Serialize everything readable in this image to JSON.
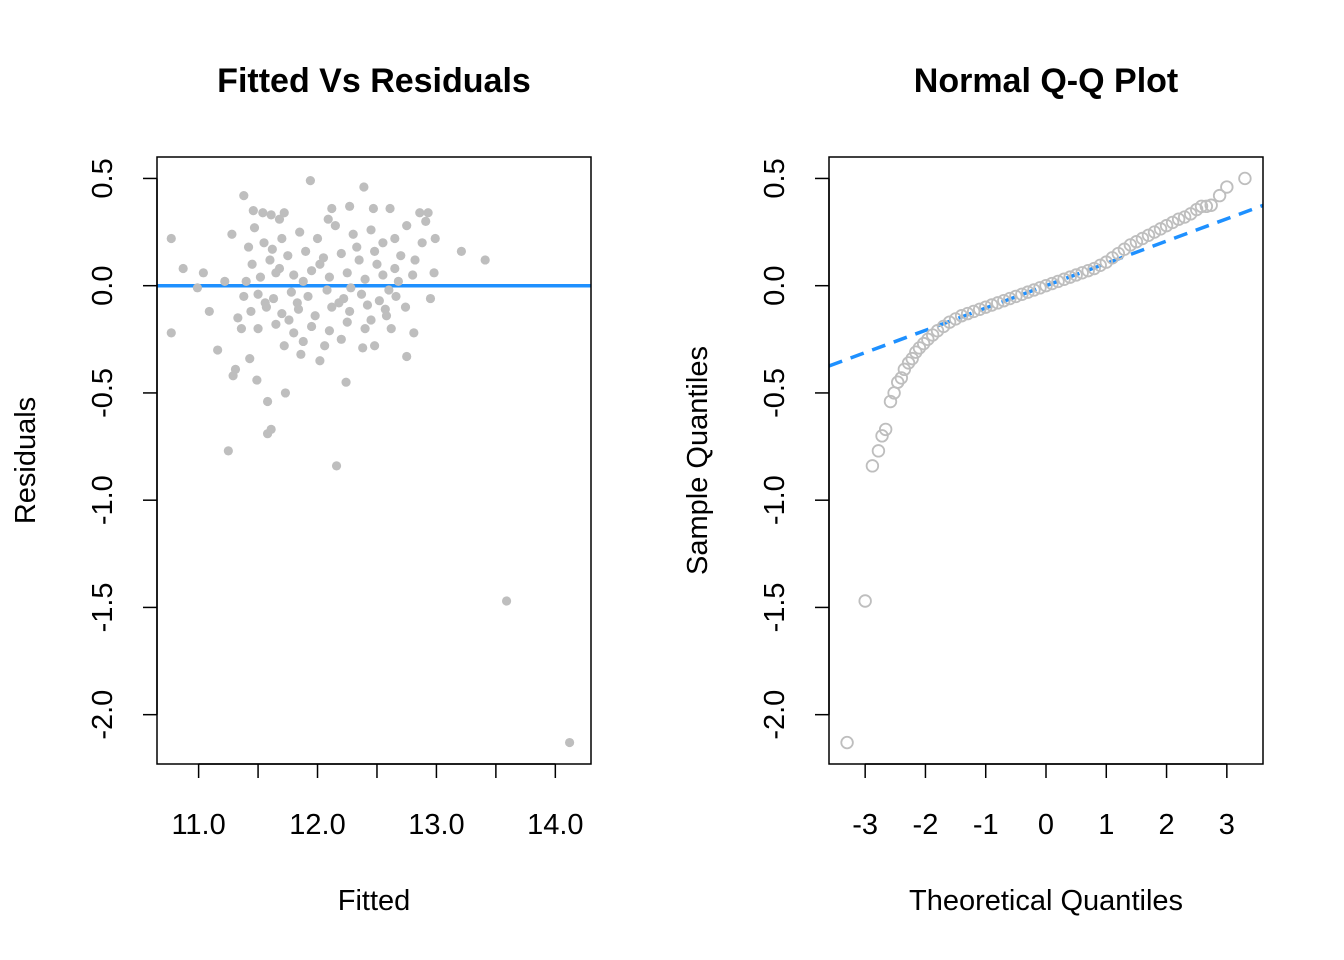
{
  "chart_data": [
    {
      "type": "scatter",
      "title": "Fitted Vs Residuals",
      "xlabel": "Fitted",
      "ylabel": "Residuals",
      "xlim": [
        10.65,
        14.3
      ],
      "ylim": [
        -2.23,
        0.6
      ],
      "x_ticks": [
        {
          "value": 11.0,
          "label": "11.0"
        },
        {
          "value": 11.5,
          "label": ""
        },
        {
          "value": 12.0,
          "label": "12.0"
        },
        {
          "value": 12.5,
          "label": ""
        },
        {
          "value": 13.0,
          "label": "13.0"
        },
        {
          "value": 13.5,
          "label": ""
        },
        {
          "value": 14.0,
          "label": "14.0"
        }
      ],
      "y_ticks": [
        {
          "value": 0.5,
          "label": "0.5"
        },
        {
          "value": 0.0,
          "label": "0.0"
        },
        {
          "value": -0.5,
          "label": "-0.5"
        },
        {
          "value": -1.0,
          "label": "-1.0"
        },
        {
          "value": -1.5,
          "label": "-1.5"
        },
        {
          "value": -2.0,
          "label": "-2.0"
        }
      ],
      "reference_line": {
        "y": 0,
        "color": "#1E90FF"
      },
      "point_color": "#BEBEBE",
      "point_style": "filled",
      "grid": false,
      "points": [
        [
          10.77,
          0.22
        ],
        [
          10.87,
          0.08
        ],
        [
          10.99,
          -0.01
        ],
        [
          11.04,
          0.06
        ],
        [
          11.09,
          -0.12
        ],
        [
          10.77,
          -0.22
        ],
        [
          11.16,
          -0.3
        ],
        [
          11.25,
          -0.77
        ],
        [
          11.31,
          -0.39
        ],
        [
          11.29,
          -0.42
        ],
        [
          11.22,
          0.02
        ],
        [
          11.28,
          0.24
        ],
        [
          11.38,
          0.42
        ],
        [
          11.46,
          0.35
        ],
        [
          11.54,
          0.34
        ],
        [
          11.61,
          0.33
        ],
        [
          11.68,
          0.31
        ],
        [
          11.72,
          0.34
        ],
        [
          11.94,
          0.49
        ],
        [
          12.12,
          0.36
        ],
        [
          12.27,
          0.37
        ],
        [
          12.39,
          0.46
        ],
        [
          12.47,
          0.36
        ],
        [
          12.61,
          0.36
        ],
        [
          12.75,
          0.28
        ],
        [
          12.86,
          0.34
        ],
        [
          12.93,
          0.34
        ],
        [
          12.91,
          0.3
        ],
        [
          12.99,
          0.22
        ],
        [
          12.88,
          0.2
        ],
        [
          13.21,
          0.16
        ],
        [
          13.41,
          0.12
        ],
        [
          12.82,
          0.12
        ],
        [
          12.98,
          0.06
        ],
        [
          12.8,
          0.05
        ],
        [
          12.95,
          -0.06
        ],
        [
          12.74,
          -0.1
        ],
        [
          12.58,
          -0.14
        ],
        [
          12.62,
          -0.2
        ],
        [
          12.81,
          -0.22
        ],
        [
          12.75,
          -0.33
        ],
        [
          12.48,
          -0.28
        ],
        [
          12.38,
          -0.29
        ],
        [
          12.24,
          -0.45
        ],
        [
          12.16,
          -0.84
        ],
        [
          12.02,
          -0.35
        ],
        [
          11.86,
          -0.32
        ],
        [
          11.73,
          -0.5
        ],
        [
          11.58,
          -0.54
        ],
        [
          11.61,
          -0.67
        ],
        [
          11.58,
          -0.69
        ],
        [
          11.49,
          -0.44
        ],
        [
          11.43,
          -0.34
        ],
        [
          11.36,
          -0.2
        ],
        [
          11.33,
          -0.15
        ],
        [
          13.59,
          -1.47
        ],
        [
          14.12,
          -2.13
        ],
        [
          11.42,
          0.18
        ],
        [
          11.55,
          0.2
        ],
        [
          11.7,
          0.22
        ],
        [
          11.85,
          0.25
        ],
        [
          12.0,
          0.22
        ],
        [
          12.15,
          0.28
        ],
        [
          12.3,
          0.24
        ],
        [
          12.45,
          0.26
        ],
        [
          12.55,
          0.2
        ],
        [
          12.65,
          0.22
        ],
        [
          11.45,
          0.1
        ],
        [
          11.6,
          0.12
        ],
        [
          11.75,
          0.14
        ],
        [
          11.9,
          0.16
        ],
        [
          12.05,
          0.13
        ],
        [
          12.2,
          0.15
        ],
        [
          12.35,
          0.12
        ],
        [
          12.5,
          0.1
        ],
        [
          12.65,
          0.08
        ],
        [
          12.7,
          0.14
        ],
        [
          11.4,
          0.02
        ],
        [
          11.52,
          0.04
        ],
        [
          11.65,
          0.06
        ],
        [
          11.8,
          0.05
        ],
        [
          11.95,
          0.07
        ],
        [
          12.1,
          0.04
        ],
        [
          12.25,
          0.06
        ],
        [
          12.4,
          0.03
        ],
        [
          12.55,
          0.05
        ],
        [
          12.68,
          0.02
        ],
        [
          11.38,
          -0.05
        ],
        [
          11.5,
          -0.04
        ],
        [
          11.63,
          -0.06
        ],
        [
          11.78,
          -0.03
        ],
        [
          11.92,
          -0.05
        ],
        [
          12.08,
          -0.02
        ],
        [
          12.22,
          -0.06
        ],
        [
          12.37,
          -0.04
        ],
        [
          12.52,
          -0.07
        ],
        [
          12.66,
          -0.05
        ],
        [
          11.44,
          -0.12
        ],
        [
          11.57,
          -0.1
        ],
        [
          11.7,
          -0.13
        ],
        [
          11.84,
          -0.11
        ],
        [
          11.98,
          -0.14
        ],
        [
          12.12,
          -0.1
        ],
        [
          12.27,
          -0.12
        ],
        [
          12.42,
          -0.09
        ],
        [
          12.57,
          -0.11
        ],
        [
          11.5,
          -0.2
        ],
        [
          11.65,
          -0.18
        ],
        [
          11.8,
          -0.22
        ],
        [
          11.95,
          -0.19
        ],
        [
          12.1,
          -0.21
        ],
        [
          12.25,
          -0.17
        ],
        [
          12.4,
          -0.2
        ],
        [
          11.72,
          -0.28
        ],
        [
          11.88,
          -0.26
        ],
        [
          12.06,
          -0.28
        ],
        [
          12.2,
          -0.25
        ],
        [
          11.68,
          0.08
        ],
        [
          11.83,
          -0.08
        ],
        [
          12.02,
          0.1
        ],
        [
          12.18,
          -0.08
        ],
        [
          12.33,
          0.18
        ],
        [
          11.56,
          -0.08
        ],
        [
          12.48,
          0.16
        ],
        [
          12.6,
          -0.02
        ],
        [
          11.47,
          0.27
        ],
        [
          12.09,
          0.31
        ],
        [
          11.88,
          0.02
        ],
        [
          12.28,
          -0.01
        ],
        [
          11.76,
          -0.16
        ],
        [
          12.45,
          -0.16
        ],
        [
          11.62,
          0.17
        ]
      ]
    },
    {
      "type": "scatter",
      "title": "Normal Q-Q Plot",
      "xlabel": "Theoretical Quantiles",
      "ylabel": "Sample Quantiles",
      "xlim": [
        -3.6,
        3.6
      ],
      "ylim": [
        -2.23,
        0.6
      ],
      "x_ticks": [
        {
          "value": -3,
          "label": "-3"
        },
        {
          "value": -2,
          "label": "-2"
        },
        {
          "value": -1,
          "label": "-1"
        },
        {
          "value": 0,
          "label": "0"
        },
        {
          "value": 1,
          "label": "1"
        },
        {
          "value": 2,
          "label": "2"
        },
        {
          "value": 3,
          "label": "3"
        }
      ],
      "y_ticks": [
        {
          "value": 0.5,
          "label": "0.5"
        },
        {
          "value": 0.0,
          "label": "0.0"
        },
        {
          "value": -0.5,
          "label": "-0.5"
        },
        {
          "value": -1.0,
          "label": "-1.0"
        },
        {
          "value": -1.5,
          "label": "-1.5"
        },
        {
          "value": -2.0,
          "label": "-2.0"
        }
      ],
      "reference_line": {
        "slope": 0.104,
        "intercept": 0.0,
        "style": "dashed",
        "color": "#1E90FF"
      },
      "point_color": "#BEBEBE",
      "point_style": "open",
      "grid": false,
      "points": [
        [
          -3.3,
          -2.13
        ],
        [
          -3.0,
          -1.47
        ],
        [
          -2.88,
          -0.84
        ],
        [
          -2.78,
          -0.77
        ],
        [
          -2.72,
          -0.7
        ],
        [
          -2.66,
          -0.67
        ],
        [
          -2.58,
          -0.54
        ],
        [
          -2.52,
          -0.5
        ],
        [
          -2.46,
          -0.45
        ],
        [
          -2.4,
          -0.43
        ],
        [
          -2.35,
          -0.39
        ],
        [
          -2.28,
          -0.36
        ],
        [
          -2.22,
          -0.34
        ],
        [
          -2.16,
          -0.31
        ],
        [
          -2.1,
          -0.29
        ],
        [
          -2.03,
          -0.27
        ],
        [
          -1.96,
          -0.25
        ],
        [
          -1.88,
          -0.23
        ],
        [
          -1.8,
          -0.21
        ],
        [
          -1.7,
          -0.19
        ],
        [
          -1.6,
          -0.17
        ],
        [
          -1.5,
          -0.155
        ],
        [
          -1.4,
          -0.14
        ],
        [
          -1.3,
          -0.13
        ],
        [
          -1.2,
          -0.12
        ],
        [
          -1.1,
          -0.11
        ],
        [
          -1.0,
          -0.1
        ],
        [
          -0.9,
          -0.09
        ],
        [
          -0.8,
          -0.08
        ],
        [
          -0.7,
          -0.07
        ],
        [
          -0.6,
          -0.06
        ],
        [
          -0.5,
          -0.05
        ],
        [
          -0.4,
          -0.04
        ],
        [
          -0.3,
          -0.03
        ],
        [
          -0.2,
          -0.02
        ],
        [
          -0.1,
          -0.01
        ],
        [
          0.0,
          0.0
        ],
        [
          0.1,
          0.01
        ],
        [
          0.2,
          0.02
        ],
        [
          0.3,
          0.03
        ],
        [
          0.4,
          0.04
        ],
        [
          0.5,
          0.05
        ],
        [
          0.6,
          0.06
        ],
        [
          0.7,
          0.07
        ],
        [
          0.8,
          0.08
        ],
        [
          0.9,
          0.095
        ],
        [
          1.0,
          0.11
        ],
        [
          1.1,
          0.13
        ],
        [
          1.2,
          0.15
        ],
        [
          1.3,
          0.17
        ],
        [
          1.4,
          0.19
        ],
        [
          1.5,
          0.205
        ],
        [
          1.6,
          0.22
        ],
        [
          1.7,
          0.235
        ],
        [
          1.8,
          0.25
        ],
        [
          1.9,
          0.265
        ],
        [
          2.0,
          0.28
        ],
        [
          2.1,
          0.295
        ],
        [
          2.2,
          0.31
        ],
        [
          2.3,
          0.32
        ],
        [
          2.4,
          0.335
        ],
        [
          2.5,
          0.355
        ],
        [
          2.58,
          0.37
        ],
        [
          2.66,
          0.37
        ],
        [
          2.74,
          0.375
        ],
        [
          2.88,
          0.42
        ],
        [
          3.0,
          0.46
        ],
        [
          3.3,
          0.5
        ]
      ]
    }
  ]
}
